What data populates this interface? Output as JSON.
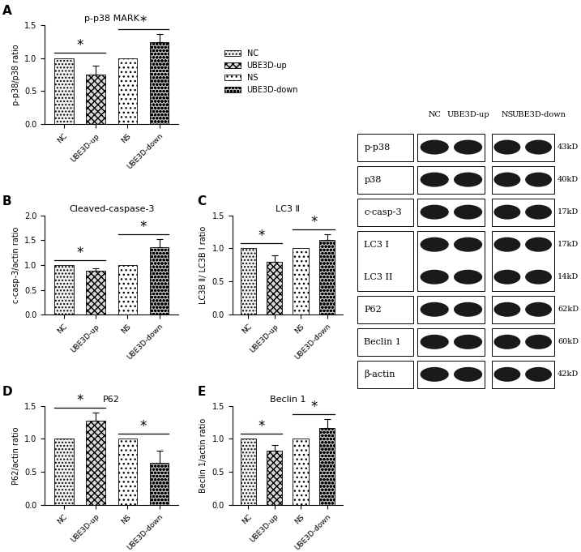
{
  "chart_data": [
    {
      "panel": "A",
      "type": "bar",
      "title": "p-p38 MARK",
      "ylabel": "p-p38/p38 ratio",
      "categories": [
        "NC",
        "UBE3D-up",
        "NS",
        "UBE3D-down"
      ],
      "values": [
        1.0,
        0.75,
        1.0,
        1.24
      ],
      "errors": [
        null,
        0.13,
        null,
        0.12
      ],
      "colors": [
        "#f2f2f2",
        "#d9d9d9",
        "#ffffff",
        "#bfbfbf"
      ],
      "ylim": [
        0.0,
        1.5
      ],
      "yticks": [
        0.0,
        0.5,
        1.0,
        1.5
      ],
      "annotations": [
        {
          "text": "*",
          "between": [
            "NC",
            "UBE3D-up"
          ]
        },
        {
          "text": "*",
          "between": [
            "NS",
            "UBE3D-down"
          ]
        }
      ]
    },
    {
      "panel": "B",
      "type": "bar",
      "title": "Cleaved-caspase-3",
      "ylabel": "c-casp-3/actin ratio",
      "categories": [
        "NC",
        "UBE3D-up",
        "NS",
        "UBE3D-down"
      ],
      "values": [
        1.0,
        0.88,
        1.0,
        1.36
      ],
      "errors": [
        null,
        0.06,
        null,
        0.16
      ],
      "colors": [
        "#f2f2f2",
        "#d9d9d9",
        "#ffffff",
        "#bfbfbf"
      ],
      "ylim": [
        0.0,
        2.0
      ],
      "yticks": [
        0.0,
        0.5,
        1.0,
        1.5,
        2.0
      ],
      "annotations": [
        {
          "text": "*",
          "between": [
            "NC",
            "UBE3D-up"
          ]
        },
        {
          "text": "*",
          "between": [
            "NS",
            "UBE3D-down"
          ]
        }
      ]
    },
    {
      "panel": "C",
      "type": "bar",
      "title": "LC3 Ⅱ",
      "ylabel": "LC3B Ⅱ/ LC3B Ⅰ ratio",
      "categories": [
        "NC",
        "UBE3D-up",
        "NS",
        "UBE3D-down"
      ],
      "values": [
        1.0,
        0.8,
        1.0,
        1.13
      ],
      "errors": [
        null,
        0.09,
        null,
        0.08
      ],
      "colors": [
        "#f2f2f2",
        "#d9d9d9",
        "#ffffff",
        "#bfbfbf"
      ],
      "ylim": [
        0.0,
        1.5
      ],
      "yticks": [
        0.0,
        0.5,
        1.0,
        1.5
      ],
      "annotations": [
        {
          "text": "*",
          "between": [
            "NC",
            "UBE3D-up"
          ]
        },
        {
          "text": "*",
          "between": [
            "NS",
            "UBE3D-down"
          ]
        }
      ]
    },
    {
      "panel": "D",
      "type": "bar",
      "title": "P62",
      "ylabel": "P62/actin ratio",
      "categories": [
        "NC",
        "UBE3D-up",
        "NS",
        "UBE3D-down"
      ],
      "values": [
        1.0,
        1.28,
        1.0,
        0.64
      ],
      "errors": [
        null,
        0.12,
        null,
        0.18
      ],
      "colors": [
        "#f2f2f2",
        "#d9d9d9",
        "#ffffff",
        "#bfbfbf"
      ],
      "ylim": [
        0.0,
        1.5
      ],
      "yticks": [
        0.0,
        0.5,
        1.0,
        1.5
      ],
      "annotations": [
        {
          "text": "*",
          "between": [
            "NC",
            "UBE3D-up"
          ]
        },
        {
          "text": "*",
          "between": [
            "NS",
            "UBE3D-down"
          ]
        }
      ]
    },
    {
      "panel": "E",
      "type": "bar",
      "title": "Beclin 1",
      "ylabel": "Beclin 1/actin ratio",
      "categories": [
        "NC",
        "UBE3D-up",
        "NS",
        "UBE3D-down"
      ],
      "values": [
        1.0,
        0.82,
        1.0,
        1.17
      ],
      "errors": [
        null,
        0.09,
        null,
        0.13
      ],
      "colors": [
        "#f2f2f2",
        "#d9d9d9",
        "#ffffff",
        "#bfbfbf"
      ],
      "ylim": [
        0.0,
        1.5
      ],
      "yticks": [
        0.0,
        0.5,
        1.0,
        1.5
      ],
      "annotations": [
        {
          "text": "*",
          "between": [
            "NC",
            "UBE3D-up"
          ]
        },
        {
          "text": "*",
          "between": [
            "NS",
            "UBE3D-down"
          ]
        }
      ]
    }
  ],
  "figure_legend": [
    "NC",
    "UBE3D-up",
    "NS",
    "UBE3D-down"
  ],
  "blot": {
    "columns": [
      [
        "NC",
        "UBE3D-up"
      ],
      [
        "NS",
        "UBE3D-down"
      ]
    ],
    "rows": [
      {
        "labels": [
          "p-p38"
        ],
        "sizes": [
          "43kD"
        ]
      },
      {
        "labels": [
          "p38"
        ],
        "sizes": [
          "40kD"
        ]
      },
      {
        "labels": [
          "c-casp-3"
        ],
        "sizes": [
          "17kD"
        ]
      },
      {
        "labels": [
          "LC3 I",
          "LC3 II"
        ],
        "sizes": [
          "17kD",
          "14kD"
        ]
      },
      {
        "labels": [
          "P62"
        ],
        "sizes": [
          "62kD"
        ]
      },
      {
        "labels": [
          "Beclin 1"
        ],
        "sizes": [
          "60kD"
        ]
      },
      {
        "labels": [
          "β-actin"
        ],
        "sizes": [
          "42kD"
        ]
      }
    ]
  }
}
